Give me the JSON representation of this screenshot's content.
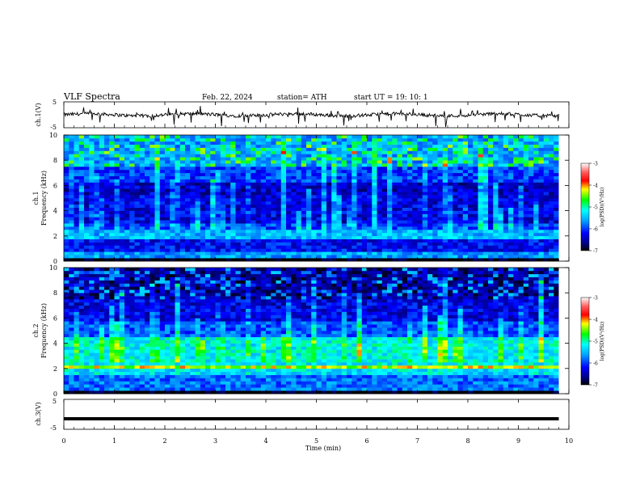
{
  "header": {
    "title": "VLF  Spectra",
    "date": "Feb. 22, 2024",
    "station": "station= ATH",
    "start": "start  UT  =    19: 10: 1"
  },
  "chart_data": [
    {
      "type": "line",
      "panel": "ch1",
      "ylabel": "ch.1(V)",
      "ylim": [
        -5,
        5
      ],
      "yticks": [
        "5",
        "-5"
      ],
      "baseline_v": 0,
      "x_range_min": [
        0,
        9.8
      ]
    },
    {
      "type": "heatmap",
      "panel": "spec1",
      "ylabel_lines": [
        "ch.1",
        "Frequency  (kHz)"
      ],
      "ylim": [
        0,
        10
      ],
      "yticks": [
        "0",
        "2",
        "4",
        "6",
        "8",
        "10"
      ],
      "x_range_min": [
        0,
        9.8
      ],
      "colorbar": {
        "label": "log(PSD)(V²/Hz)",
        "ticks": [
          "-3",
          "-4",
          "-5",
          "-6",
          "-7"
        ],
        "range": [
          -7,
          -3
        ]
      },
      "band_levels": [
        {
          "f": [
            0,
            0.25
          ],
          "level": -7.0
        },
        {
          "f": [
            0.25,
            0.8
          ],
          "level": -5.6
        },
        {
          "f": [
            0.8,
            1.7
          ],
          "level": -6.2
        },
        {
          "f": [
            1.7,
            2.6
          ],
          "level": -5.5
        },
        {
          "f": [
            2.6,
            3.0
          ],
          "level": -6.0
        },
        {
          "f": [
            3.0,
            5.2
          ],
          "level": -6.3
        },
        {
          "f": [
            5.2,
            6.3
          ],
          "level": -6.4
        },
        {
          "f": [
            6.3,
            7.5
          ],
          "level": -6.0
        },
        {
          "f": [
            7.5,
            10.0
          ],
          "level": -5.6
        }
      ]
    },
    {
      "type": "heatmap",
      "panel": "spec2",
      "ylabel_lines": [
        "ch.2",
        "Frequency  (kHz)"
      ],
      "ylim": [
        0,
        10
      ],
      "yticks": [
        "0",
        "2",
        "4",
        "6",
        "8",
        "10"
      ],
      "x_range_min": [
        0,
        9.8
      ],
      "colorbar": {
        "label": "log(PSD)(V²/Hz)",
        "ticks": [
          "-3",
          "-4",
          "-5",
          "-6",
          "-7"
        ],
        "range": [
          -7,
          -3
        ]
      },
      "band_levels": [
        {
          "f": [
            0,
            0.25
          ],
          "level": -7.0
        },
        {
          "f": [
            0.25,
            1.5
          ],
          "level": -5.8
        },
        {
          "f": [
            1.5,
            1.9
          ],
          "level": -5.3
        },
        {
          "f": [
            1.9,
            2.3
          ],
          "level": -4.3
        },
        {
          "f": [
            2.3,
            4.5
          ],
          "level": -5.2
        },
        {
          "f": [
            4.5,
            5.8
          ],
          "level": -5.9
        },
        {
          "f": [
            5.8,
            7.5
          ],
          "level": -6.3
        },
        {
          "f": [
            7.5,
            10.0
          ],
          "level": -6.6
        }
      ]
    },
    {
      "type": "line",
      "panel": "ch3",
      "ylabel": "ch.3(V)",
      "ylim": [
        -5,
        5
      ],
      "yticks": [
        "5",
        "-5"
      ],
      "baseline_v": -1.5,
      "x_range_min": [
        0,
        9.8
      ]
    }
  ],
  "xaxis": {
    "label": "Time  (min)",
    "ticks": [
      "0",
      "1",
      "2",
      "3",
      "4",
      "5",
      "6",
      "7",
      "8",
      "9",
      "10"
    ],
    "range": [
      0,
      10
    ]
  }
}
